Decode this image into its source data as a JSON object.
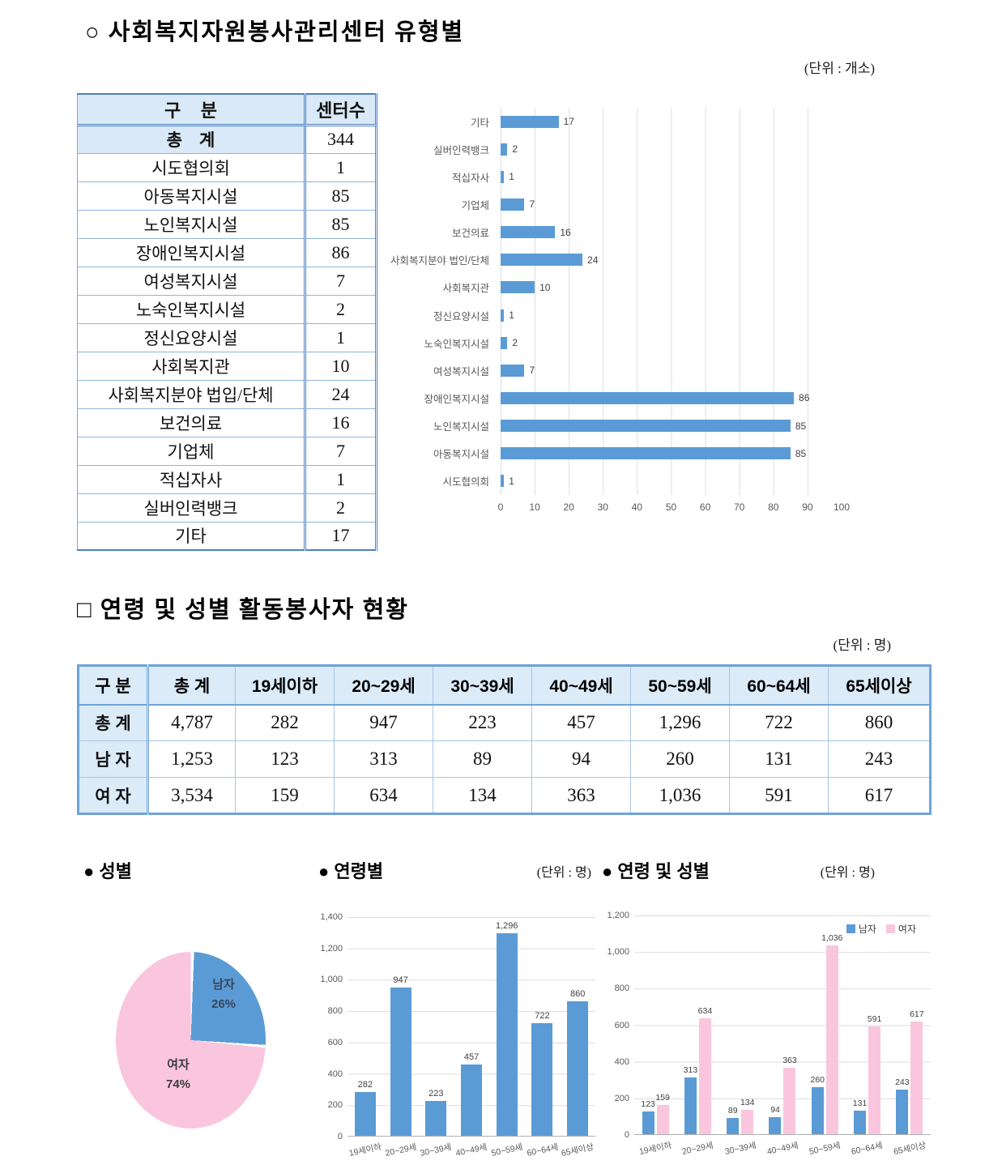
{
  "page": {
    "section1": {
      "title": "○ 사회복지자원봉사관리센터 유형별",
      "unit": "(단위 : 개소)"
    },
    "section2": {
      "title": "□ 연령 및 성별 활동봉사자 현황",
      "unit": "(단위 : 명)"
    },
    "bottom": {
      "gender_title": "● 성별",
      "age_title": "● 연령별",
      "age_unit": "(단위 : 명)",
      "age_gender_title": "● 연령 및 성별",
      "age_gender_unit": "(단위 : 명)"
    }
  },
  "table1": {
    "headers": [
      "구    분",
      "센터수"
    ],
    "total_row": {
      "label": "총    계",
      "value": "344"
    },
    "rows": [
      {
        "label": "시도협의회",
        "value": "1"
      },
      {
        "label": "아동복지시설",
        "value": "85"
      },
      {
        "label": "노인복지시설",
        "value": "85"
      },
      {
        "label": "장애인복지시설",
        "value": "86"
      },
      {
        "label": "여성복지시설",
        "value": "7"
      },
      {
        "label": "노숙인복지시설",
        "value": "2"
      },
      {
        "label": "정신요양시설",
        "value": "1"
      },
      {
        "label": "사회복지관",
        "value": "10"
      },
      {
        "label": "사회복지분야 법입/단체",
        "value": "24"
      },
      {
        "label": "보건의료",
        "value": "16"
      },
      {
        "label": "기업체",
        "value": "7"
      },
      {
        "label": "적십자사",
        "value": "1"
      },
      {
        "label": "실버인력뱅크",
        "value": "2"
      },
      {
        "label": "기타",
        "value": "17"
      }
    ]
  },
  "table2": {
    "headers": [
      "구 분",
      "총 계",
      "19세이하",
      "20~29세",
      "30~39세",
      "40~49세",
      "50~59세",
      "60~64세",
      "65세이상"
    ],
    "rows": [
      {
        "label": "총 계",
        "values": [
          "4,787",
          "282",
          "947",
          "223",
          "457",
          "1,296",
          "722",
          "860"
        ]
      },
      {
        "label": "남 자",
        "values": [
          "1,253",
          "123",
          "313",
          "89",
          "94",
          "260",
          "131",
          "243"
        ]
      },
      {
        "label": "여 자",
        "values": [
          "3,534",
          "159",
          "634",
          "134",
          "363",
          "1,036",
          "591",
          "617"
        ]
      }
    ]
  },
  "chart_data": [
    {
      "id": "center-type-hbar",
      "type": "bar",
      "orientation": "horizontal",
      "title": "사회복지자원봉사관리센터 유형별",
      "unit": "개소",
      "categories": [
        "기타",
        "실버인력뱅크",
        "적십자사",
        "기업체",
        "보건의료",
        "사회복지분야 법인/단체",
        "사회복지관",
        "정신요양시설",
        "노숙인복지시설",
        "여성복지시설",
        "장애인복지시설",
        "노인복지시설",
        "아동복지시설",
        "시도협의회"
      ],
      "values": [
        17,
        2,
        1,
        7,
        16,
        24,
        10,
        1,
        2,
        7,
        86,
        85,
        85,
        1
      ],
      "value_labels": [
        "17",
        "2",
        "1",
        "7",
        "16",
        "24",
        "10",
        "1",
        "2",
        "7",
        "86",
        "85",
        "85",
        "1"
      ],
      "xlim": [
        0,
        100
      ],
      "x_ticks": [
        "0",
        "10",
        "20",
        "30",
        "40",
        "50",
        "60",
        "70",
        "80",
        "90",
        "100"
      ],
      "bar_color": "#5b9bd5",
      "grid": true,
      "legend": false
    },
    {
      "id": "gender-pie",
      "type": "pie",
      "title": "성별",
      "slices": [
        {
          "label": "남자",
          "value": 26,
          "pct_label": "26%",
          "color": "#5b9bd5"
        },
        {
          "label": "여자",
          "value": 74,
          "pct_label": "74%",
          "color": "#f9c6de"
        }
      ],
      "start_angle_deg": 0,
      "direction": "clockwise"
    },
    {
      "id": "age-vbar",
      "type": "bar",
      "title": "연령별",
      "unit": "명",
      "categories": [
        "19세이하",
        "20~29세",
        "30~39세",
        "40~49세",
        "50~59세",
        "60~64세",
        "65세이상"
      ],
      "values": [
        282,
        947,
        223,
        457,
        1296,
        722,
        860
      ],
      "value_labels": [
        "282",
        "947",
        "223",
        "457",
        "1,296",
        "722",
        "860"
      ],
      "ylim": [
        0,
        1400
      ],
      "y_ticks": [
        "1,400",
        "1,200",
        "1,000",
        "800",
        "600",
        "400",
        "200",
        "0"
      ],
      "bar_color": "#5b9bd5",
      "grid": true,
      "legend": false
    },
    {
      "id": "age-gender-grouped",
      "type": "bar",
      "title": "연령 및 성별",
      "unit": "명",
      "categories": [
        "19세이하",
        "20~29세",
        "30~39세",
        "40~49세",
        "50~59세",
        "60~64세",
        "65세이상"
      ],
      "series": [
        {
          "name": "남자",
          "color": "#5b9bd5",
          "values": [
            123,
            313,
            89,
            94,
            260,
            131,
            243
          ],
          "value_labels": [
            "123",
            "313",
            "89",
            "94",
            "260",
            "131",
            "243"
          ]
        },
        {
          "name": "여자",
          "color": "#f9c6de",
          "values": [
            159,
            634,
            134,
            363,
            1036,
            591,
            617
          ],
          "value_labels": [
            "159",
            "634",
            "134",
            "363",
            "1,036",
            "591",
            "617"
          ]
        }
      ],
      "ylim": [
        0,
        1200
      ],
      "y_ticks": [
        "1,200",
        "1,000",
        "800",
        "600",
        "400",
        "200",
        "0"
      ],
      "grid": true,
      "legend_position": "top-right"
    }
  ]
}
